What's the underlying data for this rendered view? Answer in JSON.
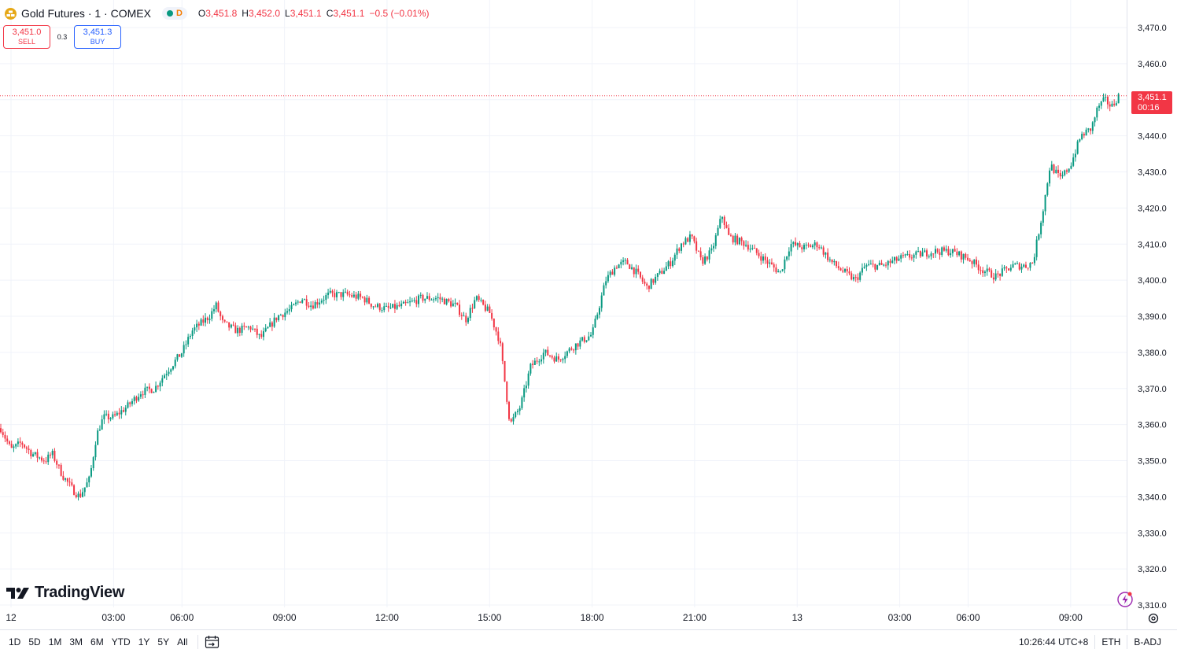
{
  "legend": {
    "symbol_icon": "gold-coin-icon",
    "title": "Gold Futures · 1 · COMEX",
    "status_letter": "D",
    "ohlc": [
      {
        "k": "O",
        "v": "3,451.8"
      },
      {
        "k": "H",
        "v": "3,452.0"
      },
      {
        "k": "L",
        "v": "3,451.1"
      },
      {
        "k": "C",
        "v": "3,451.1"
      }
    ],
    "change": "−0.5 (−0.01%)"
  },
  "trade": {
    "sell_price": "3,451.0",
    "sell_label": "SELL",
    "spread": "0.3",
    "buy_price": "3,451.3",
    "buy_label": "BUY"
  },
  "price_tag": {
    "price": "3,451.1",
    "countdown": "00:16"
  },
  "watermark": "TradingView",
  "toolbar": {
    "ranges": [
      "1D",
      "5D",
      "1M",
      "3M",
      "6M",
      "YTD",
      "1Y",
      "5Y",
      "All"
    ],
    "time": "10:26:44 UTC+8",
    "session": "ETH",
    "adjust": "B-ADJ"
  },
  "colors": {
    "up": "#089981",
    "down": "#f23645",
    "grid": "#f0f3fa",
    "accent": "#2962ff"
  },
  "chart_data": {
    "type": "candlestick",
    "title": "Gold Futures · 1 · COMEX",
    "xlabel": "",
    "ylabel": "",
    "ylim": [
      3310,
      3470
    ],
    "yticks": [
      3310,
      3320,
      3330,
      3340,
      3350,
      3360,
      3370,
      3380,
      3390,
      3400,
      3410,
      3420,
      3430,
      3440,
      3450,
      3460,
      3470
    ],
    "x_axis_labels": [
      {
        "label": "12",
        "hour": 0
      },
      {
        "label": "03:00",
        "hour": 3
      },
      {
        "label": "06:00",
        "hour": 5
      },
      {
        "label": "09:00",
        "hour": 8
      },
      {
        "label": "12:00",
        "hour": 11
      },
      {
        "label": "15:00",
        "hour": 14
      },
      {
        "label": "18:00",
        "hour": 17
      },
      {
        "label": "21:00",
        "hour": 20
      },
      {
        "label": "13",
        "hour": 23
      },
      {
        "label": "03:00",
        "hour": 26
      },
      {
        "label": "06:00",
        "hour": 28
      },
      {
        "label": "09:00",
        "hour": 31
      }
    ],
    "x_range_hours": [
      -0.3,
      32.5
    ],
    "current_price": 3451.1,
    "grid": true,
    "price_path": [
      [
        -0.3,
        3359
      ],
      [
        0.0,
        3353
      ],
      [
        0.3,
        3355
      ],
      [
        0.6,
        3352
      ],
      [
        1.0,
        3350
      ],
      [
        1.2,
        3352
      ],
      [
        1.5,
        3346
      ],
      [
        1.8,
        3342
      ],
      [
        2.0,
        3340
      ],
      [
        2.3,
        3345
      ],
      [
        2.5,
        3357
      ],
      [
        2.7,
        3362
      ],
      [
        3.0,
        3362
      ],
      [
        3.4,
        3365
      ],
      [
        3.6,
        3367
      ],
      [
        3.8,
        3369
      ],
      [
        4.2,
        3370
      ],
      [
        4.5,
        3374
      ],
      [
        5.0,
        3380
      ],
      [
        5.3,
        3386
      ],
      [
        5.8,
        3390
      ],
      [
        6.0,
        3393
      ],
      [
        6.2,
        3388
      ],
      [
        6.6,
        3386
      ],
      [
        7.0,
        3387
      ],
      [
        7.3,
        3384
      ],
      [
        7.8,
        3390
      ],
      [
        8.2,
        3392
      ],
      [
        8.5,
        3395
      ],
      [
        8.8,
        3393
      ],
      [
        9.3,
        3396
      ],
      [
        9.8,
        3396
      ],
      [
        10.3,
        3395
      ],
      [
        10.6,
        3393
      ],
      [
        11.0,
        3392
      ],
      [
        11.5,
        3393
      ],
      [
        12.0,
        3395
      ],
      [
        12.5,
        3395
      ],
      [
        13.0,
        3393
      ],
      [
        13.3,
        3389
      ],
      [
        13.6,
        3395
      ],
      [
        14.0,
        3391
      ],
      [
        14.3,
        3383
      ],
      [
        14.6,
        3360
      ],
      [
        14.9,
        3365
      ],
      [
        15.2,
        3376
      ],
      [
        15.6,
        3380
      ],
      [
        16.0,
        3378
      ],
      [
        16.5,
        3382
      ],
      [
        17.0,
        3385
      ],
      [
        17.4,
        3400
      ],
      [
        17.7,
        3404
      ],
      [
        18.0,
        3405
      ],
      [
        18.3,
        3402
      ],
      [
        18.6,
        3398
      ],
      [
        18.9,
        3401
      ],
      [
        19.3,
        3405
      ],
      [
        19.6,
        3410
      ],
      [
        19.9,
        3412
      ],
      [
        20.2,
        3405
      ],
      [
        20.5,
        3408
      ],
      [
        20.8,
        3418
      ],
      [
        21.0,
        3412
      ],
      [
        21.5,
        3410
      ],
      [
        22.0,
        3406
      ],
      [
        22.5,
        3402
      ],
      [
        22.8,
        3410
      ],
      [
        23.2,
        3409
      ],
      [
        23.6,
        3410
      ],
      [
        24.0,
        3405
      ],
      [
        24.4,
        3402
      ],
      [
        24.7,
        3400
      ],
      [
        25.0,
        3404
      ],
      [
        25.5,
        3404
      ],
      [
        26.0,
        3406
      ],
      [
        26.5,
        3407
      ],
      [
        27.0,
        3408
      ],
      [
        27.5,
        3408
      ],
      [
        28.0,
        3406
      ],
      [
        28.4,
        3403
      ],
      [
        28.8,
        3401
      ],
      [
        29.3,
        3404
      ],
      [
        29.7,
        3404
      ],
      [
        29.9,
        3405
      ],
      [
        30.2,
        3420
      ],
      [
        30.4,
        3432
      ],
      [
        30.7,
        3428
      ],
      [
        31.0,
        3432
      ],
      [
        31.3,
        3440
      ],
      [
        31.6,
        3442
      ],
      [
        31.8,
        3448
      ],
      [
        32.0,
        3450
      ],
      [
        32.2,
        3448
      ],
      [
        32.4,
        3451.1
      ]
    ]
  }
}
